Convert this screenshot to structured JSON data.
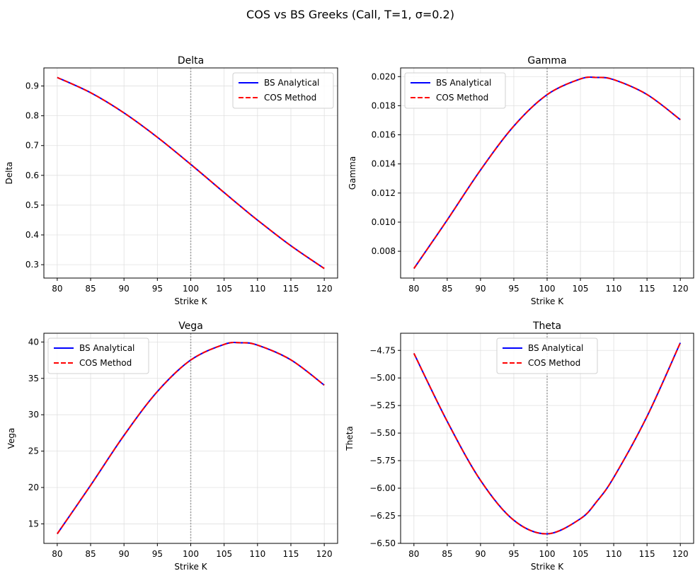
{
  "figure_title": "COS vs BS Greeks (Call, T=1, σ=0.2)",
  "colors": {
    "bs": "#0000ff",
    "cos": "#ff0000",
    "grid": "#e0e0e0",
    "vline": "#a0a0a0"
  },
  "chart_data": [
    {
      "type": "line",
      "title": "Delta",
      "xlabel": "Strike K",
      "ylabel": "Delta",
      "legend": "upper right",
      "grid": true,
      "vline_x": 100,
      "x": [
        80,
        85,
        90,
        95,
        100,
        105,
        107.5,
        110,
        115,
        120
      ],
      "xticks": [
        80,
        85,
        90,
        95,
        100,
        105,
        110,
        115,
        120
      ],
      "yticks": [
        0.3,
        0.4,
        0.5,
        0.6,
        0.7,
        0.8,
        0.9
      ],
      "ytick_decimals": 1,
      "series": [
        {
          "name": "BS Analytical",
          "style": "solid",
          "values": [
            0.9286,
            0.8775,
            0.8097,
            0.7279,
            0.6368,
            0.5422,
            0.4954,
            0.4496,
            0.3636,
            0.2872
          ]
        },
        {
          "name": "COS Method",
          "style": "dashed",
          "values": [
            0.9286,
            0.8775,
            0.8097,
            0.7279,
            0.6368,
            0.5422,
            0.4954,
            0.4496,
            0.3636,
            0.2872
          ]
        }
      ]
    },
    {
      "type": "line",
      "title": "Gamma",
      "xlabel": "Strike K",
      "ylabel": "Gamma",
      "legend": "upper left",
      "grid": true,
      "vline_x": 100,
      "x": [
        80,
        85,
        90,
        95,
        100,
        105,
        107.5,
        110,
        115,
        120
      ],
      "xticks": [
        80,
        85,
        90,
        95,
        100,
        105,
        110,
        115,
        120
      ],
      "yticks": [
        0.008,
        0.01,
        0.012,
        0.014,
        0.016,
        0.018,
        0.02
      ],
      "ytick_decimals": 3,
      "series": [
        {
          "name": "BS Analytical",
          "style": "solid",
          "values": [
            0.006814,
            0.01015,
            0.01358,
            0.0166,
            0.01876,
            0.01984,
            0.01994,
            0.01979,
            0.01877,
            0.01704
          ]
        },
        {
          "name": "COS Method",
          "style": "dashed",
          "values": [
            0.006814,
            0.01015,
            0.01358,
            0.0166,
            0.01876,
            0.01984,
            0.01994,
            0.01979,
            0.01877,
            0.01704
          ]
        }
      ]
    },
    {
      "type": "line",
      "title": "Vega",
      "xlabel": "Strike K",
      "ylabel": "Vega",
      "legend": "upper left",
      "grid": true,
      "vline_x": 100,
      "x": [
        80,
        85,
        90,
        95,
        100,
        105,
        107.5,
        110,
        115,
        120
      ],
      "xticks": [
        80,
        85,
        90,
        95,
        100,
        105,
        110,
        115,
        120
      ],
      "yticks": [
        15,
        20,
        25,
        30,
        35,
        40
      ],
      "ytick_decimals": 0,
      "series": [
        {
          "name": "BS Analytical",
          "style": "solid",
          "values": [
            13.63,
            20.3,
            27.16,
            33.19,
            37.52,
            39.67,
            39.89,
            39.57,
            37.54,
            34.07
          ]
        },
        {
          "name": "COS Method",
          "style": "dashed",
          "values": [
            13.63,
            20.3,
            27.16,
            33.19,
            37.52,
            39.67,
            39.89,
            39.57,
            37.54,
            34.07
          ]
        }
      ]
    },
    {
      "type": "line",
      "title": "Theta",
      "xlabel": "Strike K",
      "ylabel": "Theta",
      "legend": "upper center",
      "grid": true,
      "vline_x": 100,
      "x": [
        80,
        85,
        90,
        95,
        100,
        105,
        107.5,
        110,
        115,
        120
      ],
      "xticks": [
        80,
        85,
        90,
        95,
        100,
        105,
        110,
        115,
        120
      ],
      "yticks": [
        -6.5,
        -6.25,
        -6.0,
        -5.75,
        -5.5,
        -5.25,
        -5.0,
        -4.75
      ],
      "ytick_decimals": 2,
      "series": [
        {
          "name": "BS Analytical",
          "style": "solid",
          "values": [
            -4.777,
            -5.394,
            -5.929,
            -6.291,
            -6.414,
            -6.277,
            -6.117,
            -5.903,
            -5.349,
            -4.681
          ]
        },
        {
          "name": "COS Method",
          "style": "dashed",
          "values": [
            -4.777,
            -5.394,
            -5.929,
            -6.291,
            -6.414,
            -6.277,
            -6.117,
            -5.903,
            -5.349,
            -4.681
          ]
        }
      ]
    }
  ]
}
